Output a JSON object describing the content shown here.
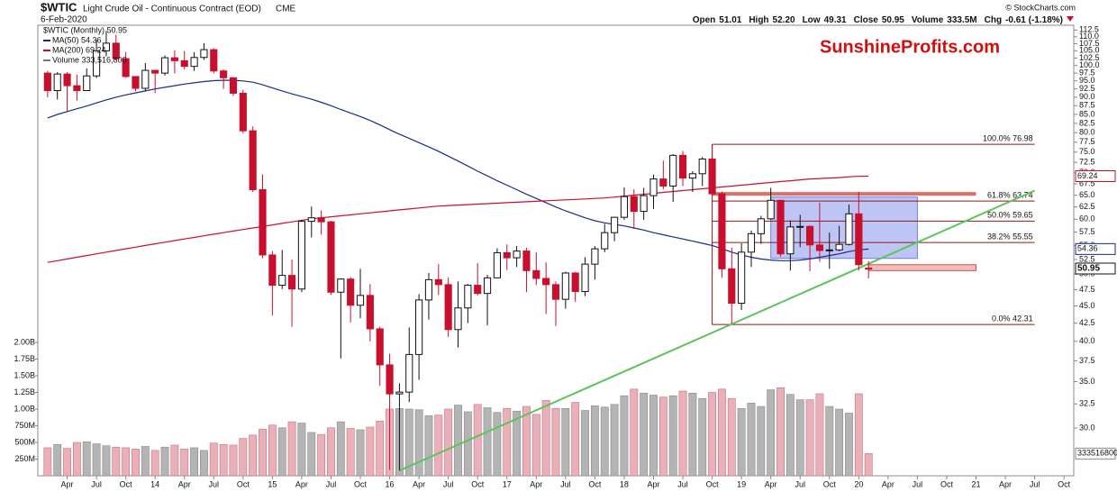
{
  "header": {
    "symbol": "$WTIC",
    "name": "Light Crude Oil - Continuous Contract (EOD)",
    "exchange": "CME",
    "date": "6-Feb-2020",
    "source": "© StockCharts.com",
    "stats": [
      {
        "label": "Open",
        "value": "51.01"
      },
      {
        "label": "High",
        "value": "52.20"
      },
      {
        "label": "Low",
        "value": "49.31"
      },
      {
        "label": "Close",
        "value": "50.95"
      },
      {
        "label": "Volume",
        "value": "333.5M"
      },
      {
        "label": "Chg",
        "value": "-0.61 (-1.18%)"
      }
    ]
  },
  "watermark": "SunshineProfits.com",
  "chart_data": {
    "type": "candlestick",
    "legend_name": "$WTIC (Monthly) 50.95",
    "log_scale": true,
    "up_color": "#ffffff",
    "down_color": "#c8102e",
    "x": [
      "2013-02",
      "2013-03",
      "2013-04",
      "2013-05",
      "2013-06",
      "2013-07",
      "2013-08",
      "2013-09",
      "2013-10",
      "2013-11",
      "2013-12",
      "2014-01",
      "2014-02",
      "2014-03",
      "2014-04",
      "2014-05",
      "2014-06",
      "2014-07",
      "2014-08",
      "2014-09",
      "2014-10",
      "2014-11",
      "2014-12",
      "2015-01",
      "2015-02",
      "2015-03",
      "2015-04",
      "2015-05",
      "2015-06",
      "2015-07",
      "2015-08",
      "2015-09",
      "2015-10",
      "2015-11",
      "2015-12",
      "2016-01",
      "2016-02",
      "2016-03",
      "2016-04",
      "2016-05",
      "2016-06",
      "2016-07",
      "2016-08",
      "2016-09",
      "2016-10",
      "2016-11",
      "2016-12",
      "2017-01",
      "2017-02",
      "2017-03",
      "2017-04",
      "2017-05",
      "2017-06",
      "2017-07",
      "2017-08",
      "2017-09",
      "2017-10",
      "2017-11",
      "2017-12",
      "2018-01",
      "2018-02",
      "2018-03",
      "2018-04",
      "2018-05",
      "2018-06",
      "2018-07",
      "2018-08",
      "2018-09",
      "2018-10",
      "2018-11",
      "2018-12",
      "2019-01",
      "2019-02",
      "2019-03",
      "2019-04",
      "2019-05",
      "2019-06",
      "2019-07",
      "2019-08",
      "2019-09",
      "2019-10",
      "2019-11",
      "2019-12",
      "2020-01",
      "2020-02"
    ],
    "open": [
      97.5,
      92.0,
      97.2,
      93.5,
      92.0,
      96.6,
      105.0,
      107.7,
      102.3,
      96.4,
      92.7,
      98.4,
      97.5,
      102.6,
      101.6,
      99.7,
      102.7,
      105.4,
      98.2,
      96.0,
      91.2,
      80.5,
      66.2,
      53.3,
      48.2,
      49.8,
      47.6,
      59.6,
      60.3,
      59.5,
      47.1,
      49.2,
      45.1,
      46.6,
      41.7,
      37.0,
      33.6,
      33.8,
      38.3,
      45.9,
      49.1,
      48.3,
      41.6,
      44.7,
      48.2,
      46.9,
      49.4,
      53.7,
      52.8,
      54.0,
      50.6,
      49.3,
      48.3,
      46.0,
      50.2,
      47.2,
      51.7,
      54.4,
      57.4,
      60.4,
      64.7,
      61.6,
      64.9,
      68.6,
      67.0,
      74.2,
      68.8,
      69.8,
      73.3,
      65.3,
      50.9,
      45.4,
      53.8,
      57.2,
      60.1,
      63.9,
      53.5,
      58.5,
      58.6,
      55.1,
      54.1,
      54.2,
      55.2,
      61.1,
      51.01
    ],
    "high": [
      98.2,
      97.8,
      97.8,
      97.0,
      99.0,
      108.9,
      112.2,
      110.7,
      104.6,
      96.5,
      100.8,
      98.6,
      103.4,
      105.2,
      104.9,
      104.5,
      107.7,
      105.9,
      98.7,
      96.2,
      92.3,
      81.7,
      69.6,
      54.0,
      54.2,
      52.5,
      59.9,
      62.6,
      61.8,
      59.7,
      49.3,
      49.5,
      50.9,
      48.4,
      42.0,
      38.4,
      34.8,
      41.9,
      46.8,
      50.2,
      51.7,
      49.5,
      48.8,
      48.4,
      51.9,
      49.9,
      54.5,
      55.2,
      54.9,
      54.6,
      53.8,
      52.0,
      48.8,
      50.4,
      50.4,
      52.9,
      54.9,
      59.1,
      60.5,
      66.7,
      66.3,
      66.6,
      69.6,
      72.9,
      74.5,
      75.3,
      70.4,
      73.8,
      76.9,
      65.8,
      54.6,
      55.4,
      57.8,
      60.7,
      66.6,
      64.0,
      59.8,
      60.9,
      58.8,
      63.4,
      57.4,
      58.7,
      63.0,
      65.7,
      52.2
    ],
    "low": [
      90.0,
      89.3,
      85.6,
      89.0,
      92.0,
      95.9,
      103.1,
      101.7,
      96.0,
      91.8,
      91.8,
      91.2,
      96.7,
      97.4,
      98.7,
      98.2,
      101.9,
      97.4,
      92.5,
      90.4,
      79.8,
      65.7,
      52.7,
      43.6,
      47.6,
      42.0,
      47.1,
      56.5,
      57.0,
      46.7,
      37.8,
      42.6,
      43.2,
      40.0,
      34.5,
      26.1,
      26.05,
      32.7,
      35.2,
      43.0,
      46.7,
      40.6,
      39.2,
      42.5,
      46.6,
      42.2,
      49.3,
      50.7,
      51.2,
      47.1,
      48.2,
      43.8,
      42.1,
      44.6,
      45.6,
      46.5,
      49.1,
      53.8,
      55.8,
      59.9,
      58.1,
      59.9,
      62.1,
      66.3,
      63.6,
      67.0,
      65.7,
      67.0,
      64.9,
      49.4,
      42.4,
      44.4,
      51.2,
      55.3,
      59.9,
      53.0,
      50.6,
      54.7,
      50.5,
      52.1,
      50.9,
      54.0,
      55.0,
      50.6,
      49.31
    ],
    "close": [
      92.0,
      97.2,
      93.5,
      92.0,
      96.6,
      105.0,
      107.7,
      102.3,
      96.4,
      92.7,
      98.4,
      97.5,
      102.6,
      101.6,
      99.7,
      102.7,
      105.4,
      98.2,
      96.0,
      91.2,
      80.5,
      66.2,
      53.3,
      48.2,
      49.8,
      47.6,
      59.6,
      60.3,
      59.5,
      47.1,
      49.2,
      45.1,
      46.6,
      41.7,
      37.0,
      33.6,
      33.8,
      38.3,
      45.9,
      49.1,
      48.3,
      41.6,
      44.7,
      48.2,
      46.9,
      49.4,
      53.7,
      52.8,
      54.0,
      50.6,
      49.3,
      48.3,
      46.0,
      50.2,
      47.2,
      51.7,
      54.4,
      57.4,
      60.4,
      64.7,
      61.6,
      64.9,
      68.6,
      67.0,
      74.2,
      68.8,
      69.8,
      73.3,
      65.3,
      50.9,
      45.4,
      53.8,
      57.2,
      60.1,
      63.9,
      53.5,
      58.5,
      58.6,
      55.1,
      54.1,
      54.2,
      55.2,
      61.1,
      51.6,
      50.95
    ],
    "overlays": [
      {
        "name": "MA(50) 54.36",
        "color": "#1a2a8c",
        "values": [
          84.0,
          85.0,
          85.8,
          86.6,
          87.4,
          88.3,
          89.2,
          90.0,
          90.7,
          91.3,
          91.9,
          92.5,
          93.0,
          93.5,
          94.0,
          94.4,
          94.8,
          95.1,
          95.2,
          95.2,
          95.0,
          94.6,
          93.8,
          92.8,
          91.9,
          91.0,
          90.2,
          89.4,
          88.5,
          87.5,
          86.4,
          85.4,
          84.4,
          83.3,
          82.1,
          80.8,
          79.6,
          78.5,
          77.4,
          76.3,
          75.2,
          74.0,
          72.8,
          71.6,
          70.4,
          69.3,
          68.2,
          67.2,
          66.2,
          65.2,
          64.3,
          63.4,
          62.5,
          61.7,
          61.0,
          60.3,
          59.7,
          59.3,
          59.0,
          58.7,
          58.3,
          57.9,
          57.4,
          57.0,
          56.6,
          56.2,
          55.8,
          55.4,
          55.0,
          54.4,
          53.8,
          53.3,
          52.9,
          52.6,
          52.4,
          52.3,
          52.3,
          52.4,
          52.6,
          52.9,
          53.2,
          53.5,
          53.9,
          54.2,
          54.36
        ]
      },
      {
        "name": "MA(200) 69.24",
        "color": "#c8102e",
        "values": [
          52.0,
          52.3,
          52.6,
          52.9,
          53.2,
          53.5,
          53.8,
          54.1,
          54.4,
          54.7,
          55.0,
          55.3,
          55.6,
          55.9,
          56.2,
          56.5,
          56.8,
          57.1,
          57.4,
          57.7,
          58.0,
          58.3,
          58.6,
          58.9,
          59.2,
          59.5,
          59.8,
          60.1,
          60.3,
          60.5,
          60.7,
          60.9,
          61.1,
          61.3,
          61.5,
          61.7,
          61.9,
          62.1,
          62.3,
          62.5,
          62.7,
          62.8,
          62.9,
          63.0,
          63.1,
          63.2,
          63.3,
          63.4,
          63.5,
          63.6,
          63.7,
          63.8,
          63.9,
          64.0,
          64.1,
          64.2,
          64.3,
          64.4,
          64.6,
          64.8,
          65.0,
          65.2,
          65.4,
          65.6,
          65.8,
          66.0,
          66.2,
          66.4,
          66.6,
          66.8,
          67.0,
          67.2,
          67.4,
          67.6,
          67.8,
          68.0,
          68.2,
          68.4,
          68.6,
          68.7,
          68.8,
          68.9,
          69.1,
          69.2,
          69.24
        ]
      }
    ],
    "volume": {
      "name": "Volume 333,516,800",
      "up_color": "#b4b4b4",
      "down_color": "#eab0b8",
      "values": [
        420000000,
        470000000,
        410000000,
        500000000,
        510000000,
        480000000,
        450000000,
        430000000,
        420000000,
        400000000,
        440000000,
        380000000,
        430000000,
        460000000,
        400000000,
        420000000,
        380000000,
        490000000,
        470000000,
        460000000,
        560000000,
        610000000,
        700000000,
        760000000,
        720000000,
        810000000,
        790000000,
        650000000,
        620000000,
        720000000,
        810000000,
        710000000,
        690000000,
        730000000,
        820000000,
        1000000000,
        1010000000,
        1000000000,
        990000000,
        900000000,
        910000000,
        1000000000,
        1060000000,
        960000000,
        1070000000,
        1020000000,
        950000000,
        1010000000,
        970000000,
        1040000000,
        920000000,
        1130000000,
        1010000000,
        1010000000,
        1100000000,
        980000000,
        1050000000,
        1030000000,
        1070000000,
        1200000000,
        1300000000,
        1240000000,
        1210000000,
        1180000000,
        1200000000,
        1270000000,
        1240000000,
        1160000000,
        1250000000,
        1300000000,
        1160000000,
        1010000000,
        1090000000,
        1040000000,
        1290000000,
        1320000000,
        1220000000,
        1140000000,
        1140000000,
        1230000000,
        1040000000,
        1000000000,
        940000000,
        1230000000,
        333516800
      ],
      "ylim": [
        0,
        2000000000
      ],
      "yticks": [
        {
          "value": 250000000,
          "label": "250M"
        },
        {
          "value": 500000000,
          "label": "500M"
        },
        {
          "value": 750000000,
          "label": "750M"
        },
        {
          "value": 1000000000,
          "label": "1.00B"
        },
        {
          "value": 1250000000,
          "label": "1.25B"
        },
        {
          "value": 1500000000,
          "label": "1.50B"
        },
        {
          "value": 1750000000,
          "label": "1.75B"
        },
        {
          "value": 2000000000,
          "label": "2.00B"
        }
      ]
    },
    "xlim": [
      "2013-01",
      "2021-11"
    ],
    "xticks": [
      {
        "value": "2013-04",
        "label": "Apr"
      },
      {
        "value": "2013-07",
        "label": "Jul"
      },
      {
        "value": "2013-10",
        "label": "Oct"
      },
      {
        "value": "2014-01",
        "label": "14"
      },
      {
        "value": "2014-04",
        "label": "Apr"
      },
      {
        "value": "2014-07",
        "label": "Jul"
      },
      {
        "value": "2014-10",
        "label": "Oct"
      },
      {
        "value": "2015-01",
        "label": "15"
      },
      {
        "value": "2015-04",
        "label": "Apr"
      },
      {
        "value": "2015-07",
        "label": "Jul"
      },
      {
        "value": "2015-10",
        "label": "Oct"
      },
      {
        "value": "2016-01",
        "label": "16"
      },
      {
        "value": "2016-04",
        "label": "Apr"
      },
      {
        "value": "2016-07",
        "label": "Jul"
      },
      {
        "value": "2016-10",
        "label": "Oct"
      },
      {
        "value": "2017-01",
        "label": "17"
      },
      {
        "value": "2017-04",
        "label": "Apr"
      },
      {
        "value": "2017-07",
        "label": "Jul"
      },
      {
        "value": "2017-10",
        "label": "Oct"
      },
      {
        "value": "2018-01",
        "label": "18"
      },
      {
        "value": "2018-04",
        "label": "Apr"
      },
      {
        "value": "2018-07",
        "label": "Jul"
      },
      {
        "value": "2018-10",
        "label": "Oct"
      },
      {
        "value": "2019-01",
        "label": "19"
      },
      {
        "value": "2019-04",
        "label": "Apr"
      },
      {
        "value": "2019-07",
        "label": "Jul"
      },
      {
        "value": "2019-10",
        "label": "Oct"
      },
      {
        "value": "2020-01",
        "label": "20"
      },
      {
        "value": "2020-04",
        "label": "Apr"
      },
      {
        "value": "2020-07",
        "label": "Jul"
      },
      {
        "value": "2020-10",
        "label": "Oct"
      },
      {
        "value": "2021-01",
        "label": "21"
      },
      {
        "value": "2021-04",
        "label": "Apr"
      },
      {
        "value": "2021-07",
        "label": "Jul"
      },
      {
        "value": "2021-10",
        "label": "Oct"
      }
    ],
    "ylim": [
      25.6,
      114.3
    ],
    "yticks": [
      {
        "value": 30,
        "label": "30.0"
      },
      32.5,
      {
        "value": 35,
        "label": "35.0"
      },
      37.5,
      {
        "value": 40,
        "label": "40.0"
      },
      42.5,
      {
        "value": 45,
        "label": "45.0"
      },
      47.5,
      {
        "value": 50,
        "label": "50.0"
      },
      52.5,
      {
        "value": 55,
        "label": "55.0"
      },
      57.5,
      {
        "value": 60,
        "label": "60.0"
      },
      62.5,
      {
        "value": 65,
        "label": "65.0"
      },
      67.5,
      {
        "value": 70,
        "label": "70.0"
      },
      72.5,
      {
        "value": 75,
        "label": "75.0"
      },
      77.5,
      {
        "value": 80,
        "label": "80.0"
      },
      82.5,
      {
        "value": 85,
        "label": "85.0"
      },
      87.5,
      {
        "value": 90,
        "label": "90.0"
      },
      92.5,
      {
        "value": 95,
        "label": "95.0"
      },
      97.5,
      {
        "value": 100,
        "label": "100.0"
      },
      102.5,
      {
        "value": 105,
        "label": "105.0"
      },
      107.5,
      {
        "value": 110,
        "label": "110.0"
      },
      112.5
    ],
    "fibonacci": {
      "color": "#8b1a1a",
      "x": [
        "2018-10",
        "2021-07"
      ],
      "levels": [
        {
          "label": "100.0% 76.98",
          "value": 76.98
        },
        {
          "label": "61.8% 63.74",
          "value": 63.74
        },
        {
          "label": "50.0% 59.65",
          "value": 59.65
        },
        {
          "label": "38.2% 55.55",
          "value": 55.55
        },
        {
          "label": "0.0% 42.31",
          "value": 42.31
        }
      ]
    },
    "resistance": {
      "color": "#d9534f",
      "x": [
        "2018-10",
        "2021-01"
      ],
      "values": [
        65.3
      ]
    },
    "support_zone": {
      "color": "#f2a0a0",
      "x": [
        "2020-02",
        "2021-01"
      ],
      "values": [
        51.6,
        50.6
      ]
    },
    "consolidation_zone": {
      "color": "#6f7fe6",
      "x": [
        "2019-04",
        "2020-07"
      ],
      "values": [
        64.6,
        52.7
      ]
    },
    "trendline": {
      "color": "#5cc45c",
      "x": [
        "2016-02",
        "2021-07"
      ],
      "values": [
        26.05,
        66.0
      ]
    }
  }
}
